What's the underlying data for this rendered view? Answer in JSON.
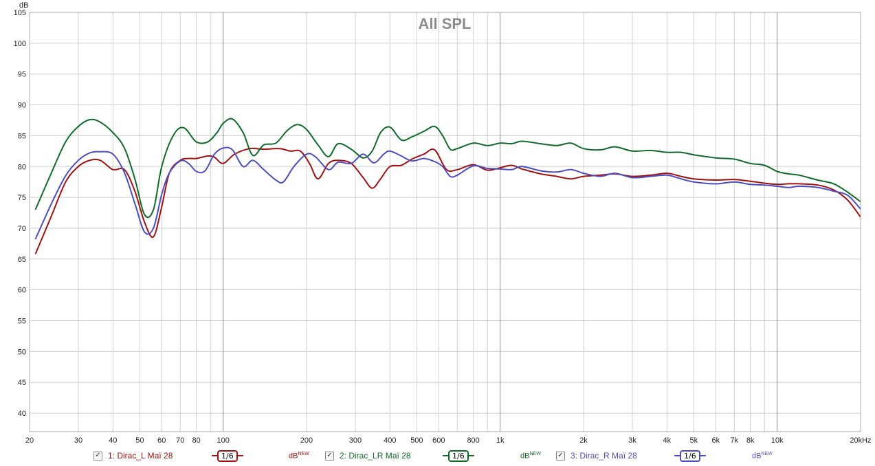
{
  "chart_data": {
    "type": "line",
    "title": "All SPL",
    "ylabel": "dB",
    "xlabel": "",
    "xscale": "log",
    "xlim": [
      20,
      20000
    ],
    "ylim": [
      37,
      105
    ],
    "y_ticks": [
      40,
      45,
      50,
      55,
      60,
      65,
      70,
      75,
      80,
      85,
      90,
      95,
      100,
      105
    ],
    "x_tick_labels": [
      {
        "f": 20,
        "label": "20"
      },
      {
        "f": 30,
        "label": "30"
      },
      {
        "f": 40,
        "label": "40"
      },
      {
        "f": 50,
        "label": "50"
      },
      {
        "f": 60,
        "label": "60"
      },
      {
        "f": 70,
        "label": "70"
      },
      {
        "f": 80,
        "label": "80"
      },
      {
        "f": 100,
        "label": "100"
      },
      {
        "f": 200,
        "label": "200"
      },
      {
        "f": 300,
        "label": "300"
      },
      {
        "f": 400,
        "label": "400"
      },
      {
        "f": 500,
        "label": "500"
      },
      {
        "f": 600,
        "label": "600"
      },
      {
        "f": 800,
        "label": "800"
      },
      {
        "f": 1000,
        "label": "1k"
      },
      {
        "f": 2000,
        "label": "2k"
      },
      {
        "f": 3000,
        "label": "3k"
      },
      {
        "f": 4000,
        "label": "4k"
      },
      {
        "f": 5000,
        "label": "5k"
      },
      {
        "f": 6000,
        "label": "6k"
      },
      {
        "f": 7000,
        "label": "7k"
      },
      {
        "f": 8000,
        "label": "8k"
      },
      {
        "f": 10000,
        "label": "10k"
      },
      {
        "f": 20000,
        "label": "20kHz"
      }
    ],
    "grid": true,
    "series": [
      {
        "name": "1: Dirac_L Маї 28",
        "color": "#a01010",
        "points": [
          [
            21,
            65.8
          ],
          [
            24,
            72
          ],
          [
            27,
            77.5
          ],
          [
            30,
            80
          ],
          [
            33,
            81
          ],
          [
            36,
            81
          ],
          [
            40,
            79.5
          ],
          [
            44,
            79.5
          ],
          [
            48,
            76
          ],
          [
            52,
            71
          ],
          [
            56,
            68.6
          ],
          [
            60,
            73.5
          ],
          [
            64,
            79
          ],
          [
            70,
            81
          ],
          [
            75,
            81.3
          ],
          [
            80,
            81.3
          ],
          [
            88,
            81.7
          ],
          [
            93,
            81.5
          ],
          [
            100,
            80.5
          ],
          [
            110,
            82
          ],
          [
            125,
            82.9
          ],
          [
            140,
            82.8
          ],
          [
            160,
            82.9
          ],
          [
            175,
            82.5
          ],
          [
            190,
            82.5
          ],
          [
            205,
            80.5
          ],
          [
            220,
            78
          ],
          [
            240,
            80.5
          ],
          [
            260,
            81
          ],
          [
            290,
            80.5
          ],
          [
            320,
            78.2
          ],
          [
            345,
            76.5
          ],
          [
            370,
            78
          ],
          [
            400,
            80
          ],
          [
            440,
            80.2
          ],
          [
            480,
            81.2
          ],
          [
            530,
            82
          ],
          [
            580,
            82.7
          ],
          [
            640,
            79.5
          ],
          [
            700,
            79.5
          ],
          [
            800,
            80.3
          ],
          [
            900,
            79.4
          ],
          [
            1000,
            79.8
          ],
          [
            1100,
            80.2
          ],
          [
            1200,
            79.6
          ],
          [
            1400,
            78.8
          ],
          [
            1600,
            78.4
          ],
          [
            1800,
            78
          ],
          [
            2000,
            78.4
          ],
          [
            2300,
            78.6
          ],
          [
            2600,
            78.8
          ],
          [
            3000,
            78.4
          ],
          [
            3500,
            78.6
          ],
          [
            4000,
            78.9
          ],
          [
            4500,
            78.4
          ],
          [
            5000,
            78
          ],
          [
            6000,
            77.8
          ],
          [
            7000,
            77.9
          ],
          [
            8000,
            77.6
          ],
          [
            9000,
            77.3
          ],
          [
            10000,
            77.1
          ],
          [
            11000,
            77.2
          ],
          [
            12000,
            77.2
          ],
          [
            14000,
            77
          ],
          [
            16000,
            76.2
          ],
          [
            18000,
            74.5
          ],
          [
            20000,
            71.8
          ]
        ]
      },
      {
        "name": "2: Dirac_LR Маї 28",
        "color": "#0e6a28",
        "points": [
          [
            21,
            73
          ],
          [
            24,
            79
          ],
          [
            27,
            84
          ],
          [
            30,
            86.5
          ],
          [
            33,
            87.6
          ],
          [
            36,
            87.2
          ],
          [
            40,
            85.5
          ],
          [
            44,
            83
          ],
          [
            48,
            78
          ],
          [
            52,
            72.2
          ],
          [
            56,
            73
          ],
          [
            60,
            80
          ],
          [
            66,
            85
          ],
          [
            72,
            86.3
          ],
          [
            80,
            84
          ],
          [
            88,
            84
          ],
          [
            95,
            85.5
          ],
          [
            100,
            87
          ],
          [
            108,
            87.7
          ],
          [
            118,
            85.5
          ],
          [
            128,
            81.8
          ],
          [
            140,
            83.5
          ],
          [
            155,
            83.8
          ],
          [
            170,
            85.8
          ],
          [
            185,
            86.8
          ],
          [
            200,
            86
          ],
          [
            220,
            83.5
          ],
          [
            240,
            81.6
          ],
          [
            260,
            83.7
          ],
          [
            290,
            82.8
          ],
          [
            320,
            81.4
          ],
          [
            345,
            82.5
          ],
          [
            370,
            85.5
          ],
          [
            400,
            86.4
          ],
          [
            440,
            84.3
          ],
          [
            480,
            84.8
          ],
          [
            530,
            85.7
          ],
          [
            580,
            86.5
          ],
          [
            620,
            85
          ],
          [
            660,
            82.8
          ],
          [
            700,
            82.9
          ],
          [
            800,
            83.8
          ],
          [
            900,
            83.4
          ],
          [
            1000,
            83.8
          ],
          [
            1100,
            83.7
          ],
          [
            1200,
            84.1
          ],
          [
            1400,
            83.7
          ],
          [
            1600,
            83.4
          ],
          [
            1800,
            83.8
          ],
          [
            2000,
            82.9
          ],
          [
            2300,
            82.7
          ],
          [
            2600,
            83.2
          ],
          [
            3000,
            82.5
          ],
          [
            3500,
            82.6
          ],
          [
            4000,
            82.3
          ],
          [
            4500,
            82.3
          ],
          [
            5000,
            81.9
          ],
          [
            6000,
            81.4
          ],
          [
            7000,
            81.2
          ],
          [
            8000,
            80.5
          ],
          [
            9000,
            80.2
          ],
          [
            10000,
            79.2
          ],
          [
            11000,
            78.8
          ],
          [
            12000,
            78.6
          ],
          [
            14000,
            77.8
          ],
          [
            16000,
            77.2
          ],
          [
            18000,
            75.8
          ],
          [
            20000,
            74.3
          ]
        ]
      },
      {
        "name": "3: Dirac_R Маї 28",
        "color": "#4c4cc2",
        "points": [
          [
            21,
            68.2
          ],
          [
            24,
            74
          ],
          [
            27,
            78.5
          ],
          [
            30,
            81
          ],
          [
            33,
            82.2
          ],
          [
            36,
            82.4
          ],
          [
            40,
            82
          ],
          [
            44,
            79
          ],
          [
            48,
            74
          ],
          [
            52,
            69.4
          ],
          [
            56,
            70
          ],
          [
            60,
            75.5
          ],
          [
            64,
            79
          ],
          [
            70,
            80.9
          ],
          [
            75,
            80.5
          ],
          [
            80,
            79.2
          ],
          [
            86,
            79.3
          ],
          [
            93,
            82
          ],
          [
            100,
            83
          ],
          [
            108,
            82.7
          ],
          [
            118,
            80
          ],
          [
            128,
            81
          ],
          [
            140,
            79.5
          ],
          [
            155,
            77.8
          ],
          [
            165,
            77.5
          ],
          [
            180,
            80
          ],
          [
            200,
            82
          ],
          [
            215,
            81.6
          ],
          [
            240,
            79.5
          ],
          [
            260,
            80.7
          ],
          [
            290,
            80.5
          ],
          [
            320,
            82
          ],
          [
            350,
            80.6
          ],
          [
            380,
            82
          ],
          [
            400,
            82.5
          ],
          [
            440,
            81.7
          ],
          [
            480,
            80.9
          ],
          [
            530,
            81.3
          ],
          [
            580,
            80.8
          ],
          [
            620,
            80
          ],
          [
            660,
            78.4
          ],
          [
            700,
            78.6
          ],
          [
            800,
            80.1
          ],
          [
            900,
            79.7
          ],
          [
            1000,
            79.6
          ],
          [
            1100,
            79.5
          ],
          [
            1200,
            80
          ],
          [
            1400,
            79.3
          ],
          [
            1600,
            79.1
          ],
          [
            1800,
            79.5
          ],
          [
            2000,
            78.9
          ],
          [
            2300,
            78.4
          ],
          [
            2600,
            78.9
          ],
          [
            3000,
            78.2
          ],
          [
            3500,
            78.4
          ],
          [
            4000,
            78.6
          ],
          [
            4500,
            78
          ],
          [
            5000,
            77.5
          ],
          [
            6000,
            77.2
          ],
          [
            7000,
            77.5
          ],
          [
            8000,
            77.1
          ],
          [
            9000,
            77
          ],
          [
            10000,
            76.8
          ],
          [
            11000,
            76.6
          ],
          [
            12000,
            76.8
          ],
          [
            14000,
            76.6
          ],
          [
            16000,
            76
          ],
          [
            18000,
            75.3
          ],
          [
            20000,
            73.1
          ]
        ]
      }
    ]
  },
  "legend": [
    {
      "checked": true,
      "mark": "✓",
      "label": "1: Dirac_L Маї 28",
      "smoothing": "1/6",
      "unit": "dB",
      "unit_sup": "NEW"
    },
    {
      "checked": true,
      "mark": "✓",
      "label": "2: Dirac_LR Маї 28",
      "smoothing": "1/6",
      "unit": "dB",
      "unit_sup": "NEW"
    },
    {
      "checked": true,
      "mark": "✓",
      "label": "3: Dirac_R Маї 28",
      "smoothing": "1/6",
      "unit": "dB",
      "unit_sup": "NEW"
    }
  ]
}
